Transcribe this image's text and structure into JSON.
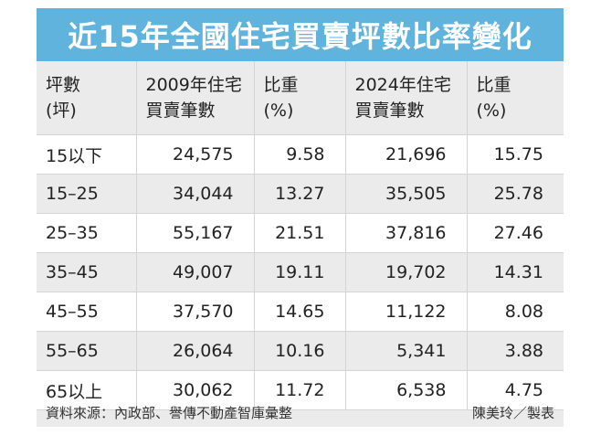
{
  "title": "近15年全國住宅買賣坪數比率變化",
  "headers": [
    [
      "坪數",
      "(坪)"
    ],
    [
      "2009年住宅",
      "買賣筆數"
    ],
    [
      "比重",
      "(%)"
    ],
    [
      "2024年住宅",
      "買賣筆數"
    ],
    [
      "比重",
      "(%)"
    ]
  ],
  "rows": [
    [
      "15以下",
      "24,575",
      "9.58",
      "21,696",
      "15.75"
    ],
    [
      "15–25",
      "34,044",
      "13.27",
      "35,505",
      "25.78"
    ],
    [
      "25–35",
      "55,167",
      "21.51",
      "37,816",
      "27.46"
    ],
    [
      "35–45",
      "49,007",
      "19.11",
      "19,702",
      "14.31"
    ],
    [
      "45–55",
      "37,570",
      "14.65",
      "11,122",
      "8.08"
    ],
    [
      "55–65",
      "26,064",
      "10.16",
      "5,341",
      "3.88"
    ],
    [
      "65以上",
      "30,062",
      "11.72",
      "6,538",
      "4.75"
    ]
  ],
  "footer": {
    "source": "資料來源：內政部、譽傳不動產智庫彙整",
    "credit": "陳美玲／製表"
  }
}
